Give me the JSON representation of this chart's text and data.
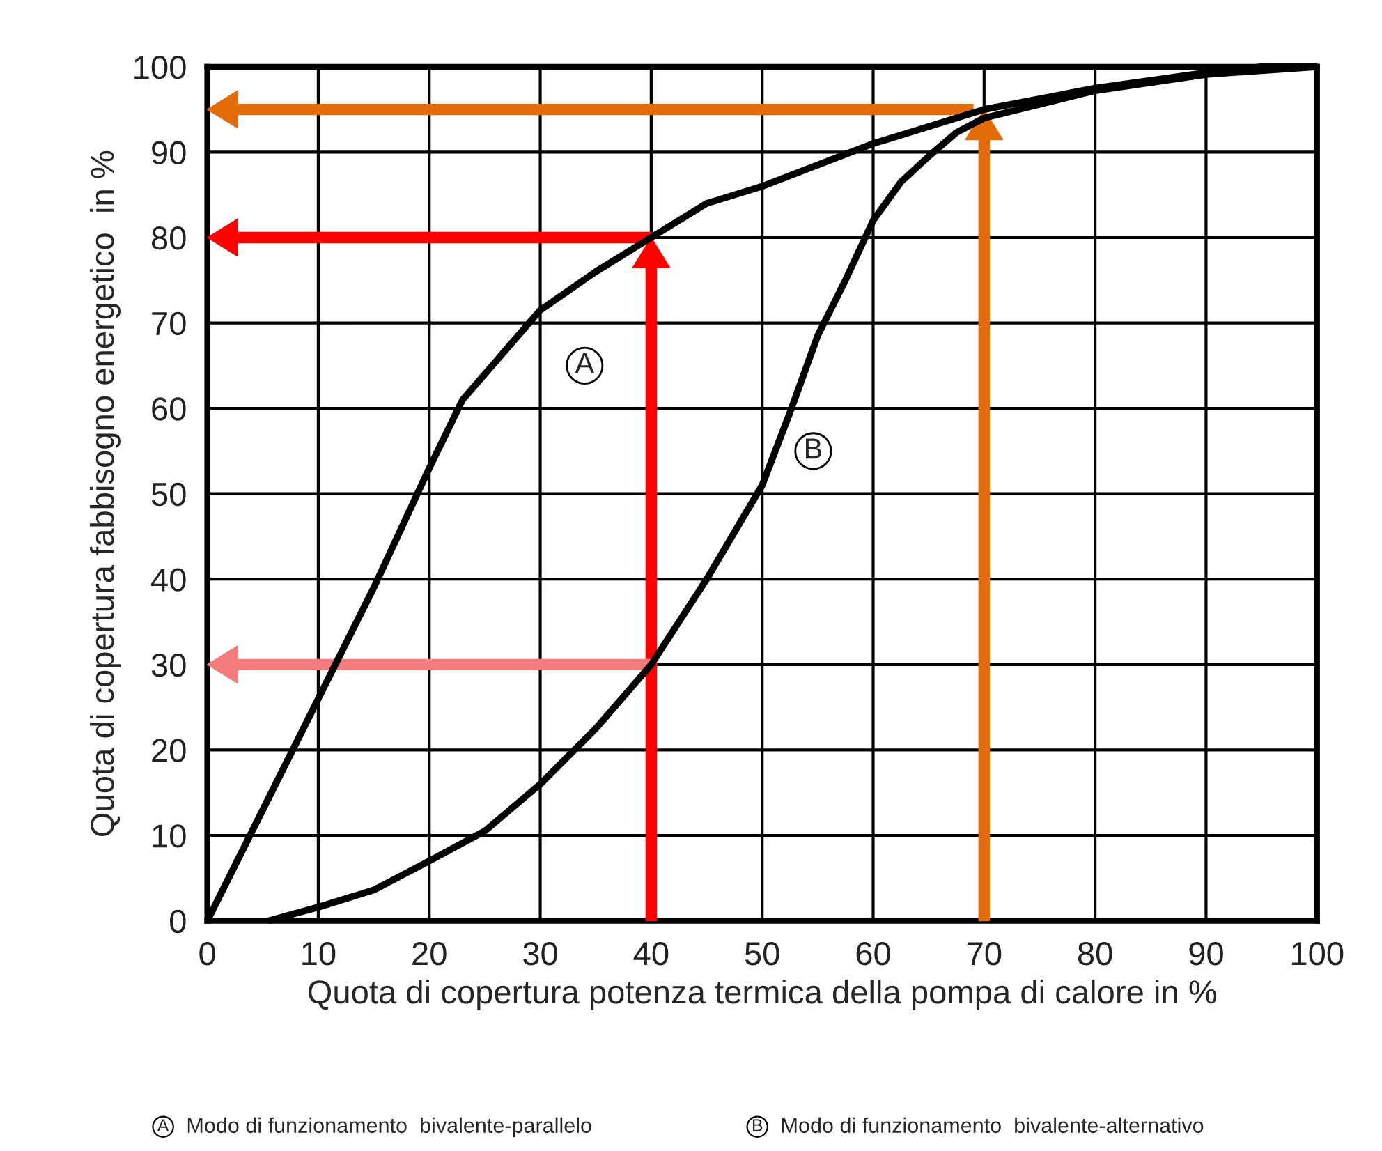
{
  "chart_data": {
    "type": "line",
    "xlabel": "Quota di copertura potenza termica della pompa di calore in %",
    "ylabel": "Quota di copertura fabbisogno energetico  in %",
    "xlim": [
      0,
      100
    ],
    "ylim": [
      0,
      100
    ],
    "xticks": [
      0,
      10,
      20,
      30,
      40,
      50,
      60,
      70,
      80,
      90,
      100
    ],
    "yticks": [
      0,
      10,
      20,
      30,
      40,
      50,
      60,
      70,
      80,
      90,
      100
    ],
    "grid": true,
    "legend": false,
    "series": [
      {
        "color": "#000000",
        "x": [
          0,
          5,
          10,
          15,
          20,
          23,
          25,
          30,
          35,
          40,
          45,
          50,
          60,
          70,
          80,
          90,
          95,
          100
        ],
        "values": [
          0,
          13,
          26,
          39,
          53,
          61,
          64,
          71.5,
          76,
          80,
          84,
          86,
          91,
          95,
          97.5,
          99.3,
          100,
          100
        ]
      },
      {
        "color": "#000000",
        "x": [
          5.5,
          10,
          15,
          20,
          25,
          30,
          35,
          40,
          45,
          50,
          52.5,
          55,
          57.5,
          60,
          62.5,
          65,
          67.5,
          70,
          80,
          90,
          100
        ],
        "values": [
          0,
          1.6,
          3.6,
          7,
          10.5,
          16,
          22.5,
          30,
          40,
          51,
          59.5,
          68.5,
          75,
          82,
          86.5,
          89.5,
          92.3,
          94,
          97.2,
          99.1,
          100
        ]
      }
    ],
    "annotations": [
      {
        "text": "A",
        "x": 34,
        "y": 65
      },
      {
        "text": "B",
        "x": 54.6,
        "y": 55
      },
      "A Modo di funzionamento  bivalente-parallelo",
      "B Modo di funzionamento  bivalente-alternativo"
    ]
  }
}
